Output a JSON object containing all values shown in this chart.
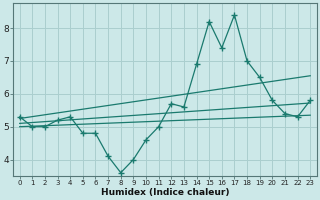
{
  "main_x": [
    0,
    1,
    2,
    3,
    4,
    5,
    6,
    7,
    8,
    9,
    10,
    11,
    12,
    13,
    14,
    15,
    16,
    17,
    18,
    19,
    20,
    21,
    22,
    23
  ],
  "main_y": [
    5.3,
    5.0,
    5.0,
    5.2,
    5.3,
    4.8,
    4.8,
    4.1,
    3.6,
    4.0,
    4.6,
    5.0,
    5.7,
    5.6,
    6.9,
    8.2,
    7.4,
    8.4,
    7.0,
    6.5,
    5.8,
    5.4,
    5.3,
    5.8
  ],
  "line1_x": [
    0,
    23
  ],
  "line1_y": [
    5.25,
    6.55
  ],
  "line2_x": [
    0,
    23
  ],
  "line2_y": [
    5.1,
    5.72
  ],
  "line3_x": [
    0,
    23
  ],
  "line3_y": [
    5.0,
    5.35
  ],
  "color": "#1a7a6e",
  "bg_color": "#cce8e8",
  "grid_color": "#aacece",
  "xlabel": "Humidex (Indice chaleur)",
  "xlim": [
    -0.5,
    23.5
  ],
  "ylim": [
    3.5,
    8.75
  ],
  "yticks": [
    4,
    5,
    6,
    7,
    8
  ],
  "xticks": [
    0,
    1,
    2,
    3,
    4,
    5,
    6,
    7,
    8,
    9,
    10,
    11,
    12,
    13,
    14,
    15,
    16,
    17,
    18,
    19,
    20,
    21,
    22,
    23
  ]
}
